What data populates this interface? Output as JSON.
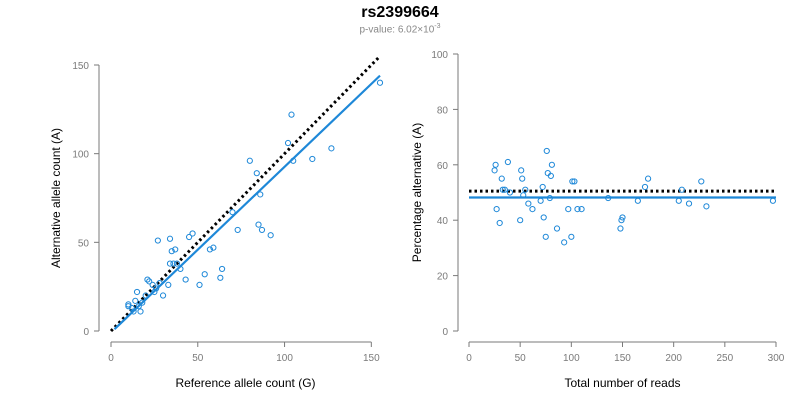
{
  "title": "rs2399664",
  "subtitle": {
    "prefix": "p-value: 6.02×10",
    "exponent": "-3"
  },
  "colors": {
    "points": "#1e88d8",
    "fit_line": "#1e88d8",
    "expected_line": "#000000",
    "axis": "#7a7a7a"
  },
  "chart_data": [
    {
      "type": "scatter",
      "xlabel": "Reference allele count (G)",
      "ylabel": "Alternative allele count (A)",
      "xlim": [
        0,
        155
      ],
      "ylim": [
        0,
        150
      ],
      "xticks": [
        0,
        50,
        100,
        150
      ],
      "yticks": [
        0,
        50,
        100,
        150
      ],
      "grid": false,
      "points": [
        [
          10,
          14
        ],
        [
          10,
          15
        ],
        [
          12,
          13
        ],
        [
          13,
          11
        ],
        [
          14,
          17
        ],
        [
          15,
          22
        ],
        [
          16,
          14
        ],
        [
          17,
          11
        ],
        [
          18,
          16
        ],
        [
          20,
          20
        ],
        [
          21,
          29
        ],
        [
          22,
          28
        ],
        [
          24,
          26
        ],
        [
          25,
          22
        ],
        [
          26,
          24
        ],
        [
          27,
          51
        ],
        [
          28,
          27
        ],
        [
          30,
          20
        ],
        [
          33,
          26
        ],
        [
          34,
          52
        ],
        [
          34,
          38
        ],
        [
          35,
          45
        ],
        [
          36,
          38
        ],
        [
          37,
          46
        ],
        [
          38,
          38
        ],
        [
          40,
          35
        ],
        [
          43,
          29
        ],
        [
          45,
          53
        ],
        [
          47,
          55
        ],
        [
          51,
          26
        ],
        [
          54,
          32
        ],
        [
          57,
          46
        ],
        [
          59,
          47
        ],
        [
          63,
          30
        ],
        [
          64,
          35
        ],
        [
          70,
          67
        ],
        [
          73,
          57
        ],
        [
          80,
          96
        ],
        [
          84,
          89
        ],
        [
          85,
          60
        ],
        [
          86,
          77
        ],
        [
          87,
          57
        ],
        [
          92,
          54
        ],
        [
          102,
          106
        ],
        [
          104,
          122
        ],
        [
          105,
          96
        ],
        [
          116,
          97
        ],
        [
          127,
          103
        ],
        [
          155,
          140
        ]
      ],
      "fit_line": [
        [
          2,
          1
        ],
        [
          155,
          144
        ]
      ],
      "expected_line": [
        [
          0,
          0
        ],
        [
          155,
          155
        ]
      ]
    },
    {
      "type": "scatter",
      "xlabel": "Total number of reads",
      "ylabel": "Percentage alternative (A)",
      "xlim": [
        0,
        300
      ],
      "ylim": [
        0,
        100
      ],
      "xticks": [
        0,
        50,
        100,
        150,
        200,
        250,
        300
      ],
      "yticks": [
        0,
        20,
        40,
        60,
        80,
        100
      ],
      "grid": false,
      "points": [
        [
          25,
          58
        ],
        [
          26,
          60
        ],
        [
          27,
          44
        ],
        [
          30,
          39
        ],
        [
          32,
          55
        ],
        [
          33,
          51
        ],
        [
          35,
          51
        ],
        [
          38,
          61
        ],
        [
          40,
          50
        ],
        [
          50,
          40
        ],
        [
          51,
          58
        ],
        [
          52,
          55
        ],
        [
          53,
          49
        ],
        [
          55,
          51
        ],
        [
          58,
          46
        ],
        [
          62,
          44
        ],
        [
          70,
          47
        ],
        [
          72,
          52
        ],
        [
          73,
          41
        ],
        [
          75,
          34
        ],
        [
          76,
          65
        ],
        [
          77,
          57
        ],
        [
          79,
          48
        ],
        [
          80,
          56
        ],
        [
          81,
          60
        ],
        [
          86,
          37
        ],
        [
          93,
          32
        ],
        [
          97,
          44
        ],
        [
          100,
          34
        ],
        [
          101,
          54
        ],
        [
          103,
          54
        ],
        [
          106,
          44
        ],
        [
          110,
          44
        ],
        [
          136,
          48
        ],
        [
          148,
          37
        ],
        [
          149,
          40
        ],
        [
          150,
          41
        ],
        [
          165,
          47
        ],
        [
          172,
          52
        ],
        [
          175,
          55
        ],
        [
          205,
          47
        ],
        [
          208,
          51
        ],
        [
          215,
          46
        ],
        [
          227,
          54
        ],
        [
          232,
          45
        ],
        [
          297,
          47
        ]
      ],
      "fit_line": [
        [
          0,
          48.2
        ],
        [
          300,
          48.2
        ]
      ],
      "expected_line": [
        [
          0,
          50.5
        ],
        [
          300,
          50.5
        ]
      ]
    }
  ]
}
